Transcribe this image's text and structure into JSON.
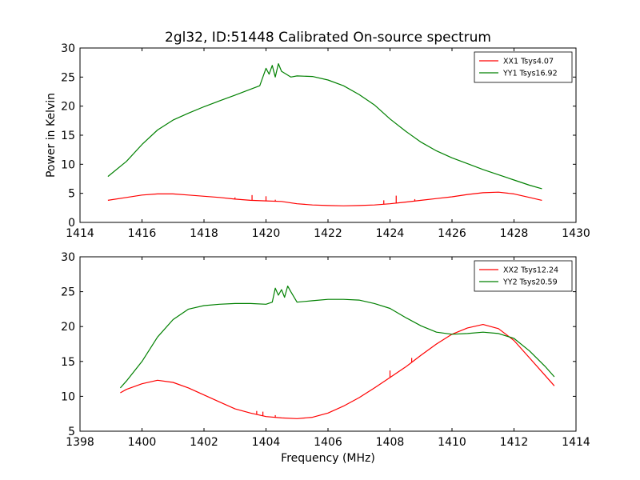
{
  "title": "2gl32, ID:51448 Calibrated On-source spectrum",
  "colors": {
    "xx": "#ff0000",
    "yy": "#008000",
    "axis": "#000000",
    "background": "#ffffff"
  },
  "chart_data": [
    {
      "type": "line",
      "title": "2gl32, ID:51448 Calibrated On-source spectrum",
      "xlabel": "",
      "ylabel": "Power in Kelvin",
      "xlim": [
        1414,
        1430
      ],
      "ylim": [
        0,
        30
      ],
      "xticks": [
        1414,
        1416,
        1418,
        1420,
        1422,
        1424,
        1426,
        1428,
        1430
      ],
      "yticks": [
        0,
        5,
        10,
        15,
        20,
        25,
        30
      ],
      "legend_position": "top-right",
      "grid": false,
      "series": [
        {
          "name": "XX1 Tsys4.07",
          "color": "#ff0000",
          "x": [
            1414.9,
            1415.5,
            1416.0,
            1416.5,
            1417.0,
            1417.5,
            1418.0,
            1418.5,
            1419.0,
            1419.5,
            1420.0,
            1420.5,
            1421.0,
            1421.5,
            1422.0,
            1422.5,
            1423.0,
            1423.5,
            1424.0,
            1424.5,
            1425.0,
            1425.5,
            1426.0,
            1426.5,
            1427.0,
            1427.5,
            1428.0,
            1428.5,
            1428.9
          ],
          "y": [
            3.8,
            4.3,
            4.7,
            4.9,
            4.9,
            4.7,
            4.5,
            4.3,
            4.0,
            3.8,
            3.7,
            3.6,
            3.2,
            3.0,
            2.9,
            2.85,
            2.9,
            3.0,
            3.2,
            3.5,
            3.8,
            4.1,
            4.4,
            4.8,
            5.1,
            5.2,
            4.9,
            4.3,
            3.8
          ],
          "spikes": [
            [
              1419.0,
              4.3
            ],
            [
              1419.55,
              4.7
            ],
            [
              1420.0,
              4.5
            ],
            [
              1420.3,
              3.9
            ],
            [
              1423.8,
              3.8
            ],
            [
              1424.2,
              4.6
            ],
            [
              1424.8,
              4.0
            ]
          ]
        },
        {
          "name": "YY1 Tsys16.92",
          "color": "#008000",
          "x": [
            1414.9,
            1415.5,
            1416.0,
            1416.5,
            1417.0,
            1417.5,
            1418.0,
            1418.5,
            1419.0,
            1419.5,
            1419.8,
            1420.0,
            1420.1,
            1420.2,
            1420.3,
            1420.4,
            1420.5,
            1420.8,
            1421.0,
            1421.5,
            1422.0,
            1422.5,
            1423.0,
            1423.5,
            1424.0,
            1424.5,
            1425.0,
            1425.5,
            1426.0,
            1426.5,
            1427.0,
            1427.5,
            1428.0,
            1428.5,
            1428.9
          ],
          "y": [
            7.9,
            10.5,
            13.4,
            15.9,
            17.6,
            18.8,
            19.9,
            20.9,
            21.9,
            22.9,
            23.5,
            26.5,
            25.5,
            27.0,
            25.0,
            27.3,
            26.0,
            25.0,
            25.2,
            25.1,
            24.5,
            23.5,
            22.0,
            20.2,
            17.8,
            15.7,
            13.8,
            12.3,
            11.1,
            10.1,
            9.1,
            8.2,
            7.3,
            6.4,
            5.8
          ]
        }
      ]
    },
    {
      "type": "line",
      "title": "",
      "xlabel": "Frequency (MHz)",
      "ylabel": "",
      "xlim": [
        1398,
        1414
      ],
      "ylim": [
        5,
        30
      ],
      "xticks": [
        1398,
        1400,
        1402,
        1404,
        1406,
        1408,
        1410,
        1412,
        1414
      ],
      "yticks": [
        5,
        10,
        15,
        20,
        25,
        30
      ],
      "legend_position": "top-right",
      "grid": false,
      "series": [
        {
          "name": "XX2 Tsys12.24",
          "color": "#ff0000",
          "x": [
            1399.3,
            1399.5,
            1400.0,
            1400.5,
            1401.0,
            1401.5,
            1402.0,
            1402.5,
            1403.0,
            1403.5,
            1404.0,
            1404.5,
            1405.0,
            1405.5,
            1406.0,
            1406.5,
            1407.0,
            1407.5,
            1408.0,
            1408.5,
            1409.0,
            1409.5,
            1410.0,
            1410.5,
            1411.0,
            1411.5,
            1412.0,
            1412.5,
            1413.0,
            1413.3
          ],
          "y": [
            10.5,
            11.0,
            11.8,
            12.3,
            12.0,
            11.2,
            10.2,
            9.2,
            8.2,
            7.6,
            7.1,
            6.9,
            6.8,
            7.0,
            7.6,
            8.6,
            9.8,
            11.2,
            12.7,
            14.2,
            15.9,
            17.5,
            18.9,
            19.8,
            20.3,
            19.7,
            18.0,
            15.5,
            13.0,
            11.5
          ],
          "spikes": [
            [
              1403.7,
              7.9
            ],
            [
              1403.9,
              7.8
            ],
            [
              1404.3,
              7.3
            ],
            [
              1408.0,
              13.7
            ],
            [
              1408.7,
              15.5
            ]
          ]
        },
        {
          "name": "YY2 Tsys20.59",
          "color": "#008000",
          "x": [
            1399.3,
            1399.5,
            1400.0,
            1400.5,
            1401.0,
            1401.5,
            1402.0,
            1402.5,
            1403.0,
            1403.5,
            1404.0,
            1404.2,
            1404.3,
            1404.4,
            1404.5,
            1404.6,
            1404.7,
            1404.8,
            1405.0,
            1405.5,
            1406.0,
            1406.5,
            1407.0,
            1407.5,
            1408.0,
            1408.5,
            1409.0,
            1409.5,
            1410.0,
            1410.5,
            1411.0,
            1411.5,
            1412.0,
            1412.5,
            1413.0,
            1413.3
          ],
          "y": [
            11.2,
            12.2,
            15.0,
            18.5,
            21.0,
            22.5,
            23.0,
            23.2,
            23.3,
            23.3,
            23.2,
            23.5,
            25.5,
            24.5,
            25.3,
            24.2,
            25.8,
            25.0,
            23.5,
            23.7,
            23.9,
            23.9,
            23.8,
            23.3,
            22.6,
            21.3,
            20.1,
            19.2,
            18.9,
            19.0,
            19.2,
            19.0,
            18.3,
            16.5,
            14.3,
            12.8
          ]
        }
      ]
    }
  ]
}
